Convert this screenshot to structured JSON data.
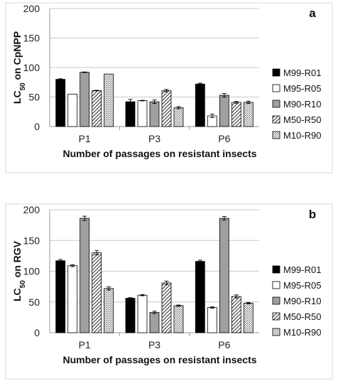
{
  "chart_data": [
    {
      "type": "bar",
      "panel_label": "a",
      "ylabel_main": "LC",
      "ylabel_sub": "50",
      "ylabel_rest": " on CpNPP",
      "xlabel": "Number of passages on resistant insects",
      "categories": [
        "P1",
        "P3",
        "P6"
      ],
      "ylim": [
        0,
        200
      ],
      "yticks": [
        0,
        50,
        100,
        150,
        200
      ],
      "grid": true,
      "legend_position": "right",
      "series": [
        {
          "name": "M99-R01",
          "values": [
            80,
            42,
            72
          ],
          "errors": [
            1,
            4,
            1.5
          ]
        },
        {
          "name": "M95-R05",
          "values": [
            55,
            44,
            18
          ],
          "errors": [
            0,
            0.5,
            3
          ]
        },
        {
          "name": "M90-R10",
          "values": [
            92,
            42,
            53
          ],
          "errors": [
            0.5,
            3,
            3
          ]
        },
        {
          "name": "M50-R50",
          "values": [
            61,
            61,
            41
          ],
          "errors": [
            0.5,
            2,
            1.5
          ]
        },
        {
          "name": "M10-R90",
          "values": [
            89,
            32,
            41
          ],
          "errors": [
            0,
            2,
            2
          ]
        }
      ]
    },
    {
      "type": "bar",
      "panel_label": "b",
      "ylabel_main": "LC",
      "ylabel_sub": "50",
      "ylabel_rest": " on RGV",
      "xlabel": "Number of passages on resistant insects",
      "categories": [
        "P1",
        "P3",
        "P6"
      ],
      "ylim": [
        0,
        200
      ],
      "yticks": [
        0,
        50,
        100,
        150,
        200
      ],
      "grid": true,
      "legend_position": "right",
      "series": [
        {
          "name": "M99-R01",
          "values": [
            117,
            56,
            116
          ],
          "errors": [
            2,
            1,
            2
          ]
        },
        {
          "name": "M95-R05",
          "values": [
            109,
            61,
            41
          ],
          "errors": [
            1.5,
            1,
            1
          ]
        },
        {
          "name": "M90-R10",
          "values": [
            186,
            33,
            186
          ],
          "errors": [
            3.5,
            2,
            3
          ]
        },
        {
          "name": "M50-R50",
          "values": [
            130,
            81,
            59
          ],
          "errors": [
            3.5,
            3,
            2.5
          ]
        },
        {
          "name": "M10-R90",
          "values": [
            72,
            44,
            48
          ],
          "errors": [
            2.5,
            1,
            1
          ]
        }
      ]
    }
  ],
  "colors": {
    "series_styles": [
      "solid-black",
      "white",
      "gray",
      "diagonal-hatch",
      "dotted"
    ],
    "fill_gray": "#a0a0a0",
    "grid": "#c8c8c8",
    "frame": "#9a9a9a"
  }
}
